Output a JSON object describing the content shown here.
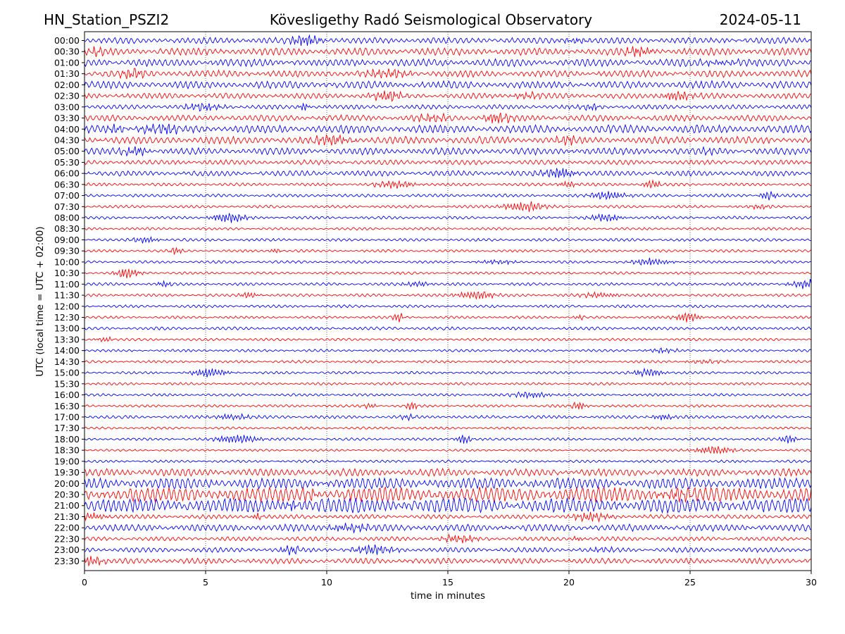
{
  "header": {
    "station": "HN_Station_PSZI2",
    "observatory": "Kövesligethy Radó Seismological Observatory",
    "date": "2024-05-11"
  },
  "chart_data": {
    "type": "line",
    "title": "Kövesligethy Radó Seismological Observatory",
    "xlabel": "time in minutes",
    "ylabel": "UTC (local time = UTC + 02:00)",
    "xlim": [
      0,
      30
    ],
    "x_ticks": [
      "0",
      "5",
      "10",
      "15",
      "20",
      "25",
      "30"
    ],
    "x_tick_values": [
      0,
      5,
      10,
      15,
      20,
      25,
      30
    ],
    "vertical_grid": true,
    "trace_colors": [
      "#0000ff",
      "#ff0000"
    ],
    "rows": [
      {
        "label": "00:00",
        "level": 0.35
      },
      {
        "label": "00:30",
        "level": 0.45
      },
      {
        "label": "01:00",
        "level": 0.45
      },
      {
        "label": "01:30",
        "level": 0.4
      },
      {
        "label": "02:00",
        "level": 0.45
      },
      {
        "label": "02:30",
        "level": 0.3
      },
      {
        "label": "03:00",
        "level": 0.22
      },
      {
        "label": "03:30",
        "level": 0.35
      },
      {
        "label": "04:00",
        "level": 0.5
      },
      {
        "label": "04:30",
        "level": 0.45
      },
      {
        "label": "05:00",
        "level": 0.4
      },
      {
        "label": "05:30",
        "level": 0.25
      },
      {
        "label": "06:00",
        "level": 0.3
      },
      {
        "label": "06:30",
        "level": 0.12
      },
      {
        "label": "07:00",
        "level": 0.12
      },
      {
        "label": "07:30",
        "level": 0.1
      },
      {
        "label": "08:00",
        "level": 0.1
      },
      {
        "label": "08:30",
        "level": 0.08
      },
      {
        "label": "09:00",
        "level": 0.1
      },
      {
        "label": "09:30",
        "level": 0.08
      },
      {
        "label": "10:00",
        "level": 0.08
      },
      {
        "label": "10:30",
        "level": 0.08
      },
      {
        "label": "11:00",
        "level": 0.1
      },
      {
        "label": "11:30",
        "level": 0.1
      },
      {
        "label": "12:00",
        "level": 0.1
      },
      {
        "label": "12:30",
        "level": 0.08
      },
      {
        "label": "13:00",
        "level": 0.12
      },
      {
        "label": "13:30",
        "level": 0.08
      },
      {
        "label": "14:00",
        "level": 0.08
      },
      {
        "label": "14:30",
        "level": 0.08
      },
      {
        "label": "15:00",
        "level": 0.08
      },
      {
        "label": "15:30",
        "level": 0.08
      },
      {
        "label": "16:00",
        "level": 0.08
      },
      {
        "label": "16:30",
        "level": 0.08
      },
      {
        "label": "17:00",
        "level": 0.12
      },
      {
        "label": "17:30",
        "level": 0.06
      },
      {
        "label": "18:00",
        "level": 0.08
      },
      {
        "label": "18:30",
        "level": 0.06
      },
      {
        "label": "19:00",
        "level": 0.08
      },
      {
        "label": "19:30",
        "level": 0.45
      },
      {
        "label": "20:00",
        "level": 0.75
      },
      {
        "label": "20:30",
        "level": 1.0
      },
      {
        "label": "21:00",
        "level": 1.0
      },
      {
        "label": "21:30",
        "level": 0.2
      },
      {
        "label": "22:00",
        "level": 0.4
      },
      {
        "label": "22:30",
        "level": 0.2
      },
      {
        "label": "23:00",
        "level": 0.25
      },
      {
        "label": "23:30",
        "level": 0.3
      }
    ]
  }
}
